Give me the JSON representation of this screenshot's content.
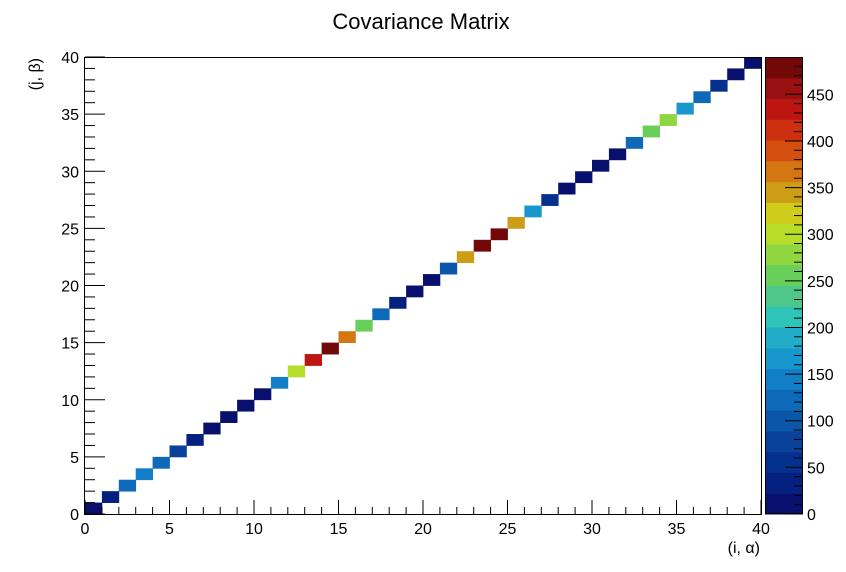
{
  "chart_data": {
    "type": "heatmap",
    "title": "Covariance Matrix",
    "xlabel": "(i, α)",
    "ylabel": "(j, β)",
    "xlim": [
      0,
      40
    ],
    "ylim": [
      0,
      40
    ],
    "x_ticks": [
      "0",
      "5",
      "10",
      "15",
      "20",
      "25",
      "30",
      "35",
      "40"
    ],
    "y_ticks": [
      "0",
      "5",
      "10",
      "15",
      "20",
      "25",
      "30",
      "35",
      "40"
    ],
    "grid": false,
    "colorbar": {
      "placement": "right",
      "zlim": [
        0,
        490
      ],
      "ticks": [
        "0",
        "50",
        "100",
        "150",
        "200",
        "250",
        "300",
        "350",
        "400",
        "450"
      ],
      "colors": [
        "#08106e",
        "#06207f",
        "#05318e",
        "#0a4299",
        "#0b56a8",
        "#0e6ab8",
        "#127ec7",
        "#1897cc",
        "#22acc8",
        "#2ec4b8",
        "#4dc88a",
        "#68cf5a",
        "#8fd640",
        "#b6de29",
        "#cfcc1a",
        "#cc9d15",
        "#d47612",
        "#d24f10",
        "#cc3011",
        "#bd1612",
        "#981010",
        "#730808"
      ]
    },
    "cells": [
      {
        "x": 0,
        "y": 0,
        "z": 5
      },
      {
        "x": 1,
        "y": 1,
        "z": 30
      },
      {
        "x": 2,
        "y": 2,
        "z": 115
      },
      {
        "x": 3,
        "y": 3,
        "z": 145
      },
      {
        "x": 4,
        "y": 4,
        "z": 130
      },
      {
        "x": 5,
        "y": 5,
        "z": 80
      },
      {
        "x": 6,
        "y": 6,
        "z": 40
      },
      {
        "x": 7,
        "y": 7,
        "z": 5
      },
      {
        "x": 8,
        "y": 8,
        "z": 5
      },
      {
        "x": 9,
        "y": 9,
        "z": 5
      },
      {
        "x": 10,
        "y": 10,
        "z": 20
      },
      {
        "x": 11,
        "y": 11,
        "z": 150
      },
      {
        "x": 12,
        "y": 12,
        "z": 310
      },
      {
        "x": 13,
        "y": 13,
        "z": 430
      },
      {
        "x": 14,
        "y": 14,
        "z": 480
      },
      {
        "x": 15,
        "y": 15,
        "z": 360
      },
      {
        "x": 16,
        "y": 16,
        "z": 250
      },
      {
        "x": 17,
        "y": 17,
        "z": 125
      },
      {
        "x": 18,
        "y": 18,
        "z": 30
      },
      {
        "x": 19,
        "y": 19,
        "z": 5
      },
      {
        "x": 20,
        "y": 20,
        "z": 5
      },
      {
        "x": 21,
        "y": 21,
        "z": 110
      },
      {
        "x": 22,
        "y": 22,
        "z": 335
      },
      {
        "x": 23,
        "y": 23,
        "z": 480
      },
      {
        "x": 24,
        "y": 24,
        "z": 480
      },
      {
        "x": 25,
        "y": 25,
        "z": 335
      },
      {
        "x": 26,
        "y": 26,
        "z": 160
      },
      {
        "x": 27,
        "y": 27,
        "z": 55
      },
      {
        "x": 28,
        "y": 28,
        "z": 20
      },
      {
        "x": 29,
        "y": 29,
        "z": 5
      },
      {
        "x": 30,
        "y": 30,
        "z": 5
      },
      {
        "x": 31,
        "y": 31,
        "z": 5
      },
      {
        "x": 32,
        "y": 32,
        "z": 130
      },
      {
        "x": 33,
        "y": 33,
        "z": 250
      },
      {
        "x": 34,
        "y": 34,
        "z": 275
      },
      {
        "x": 35,
        "y": 35,
        "z": 160
      },
      {
        "x": 36,
        "y": 36,
        "z": 120
      },
      {
        "x": 37,
        "y": 37,
        "z": 60
      },
      {
        "x": 38,
        "y": 38,
        "z": 20
      },
      {
        "x": 39,
        "y": 39,
        "z": 5
      }
    ]
  }
}
